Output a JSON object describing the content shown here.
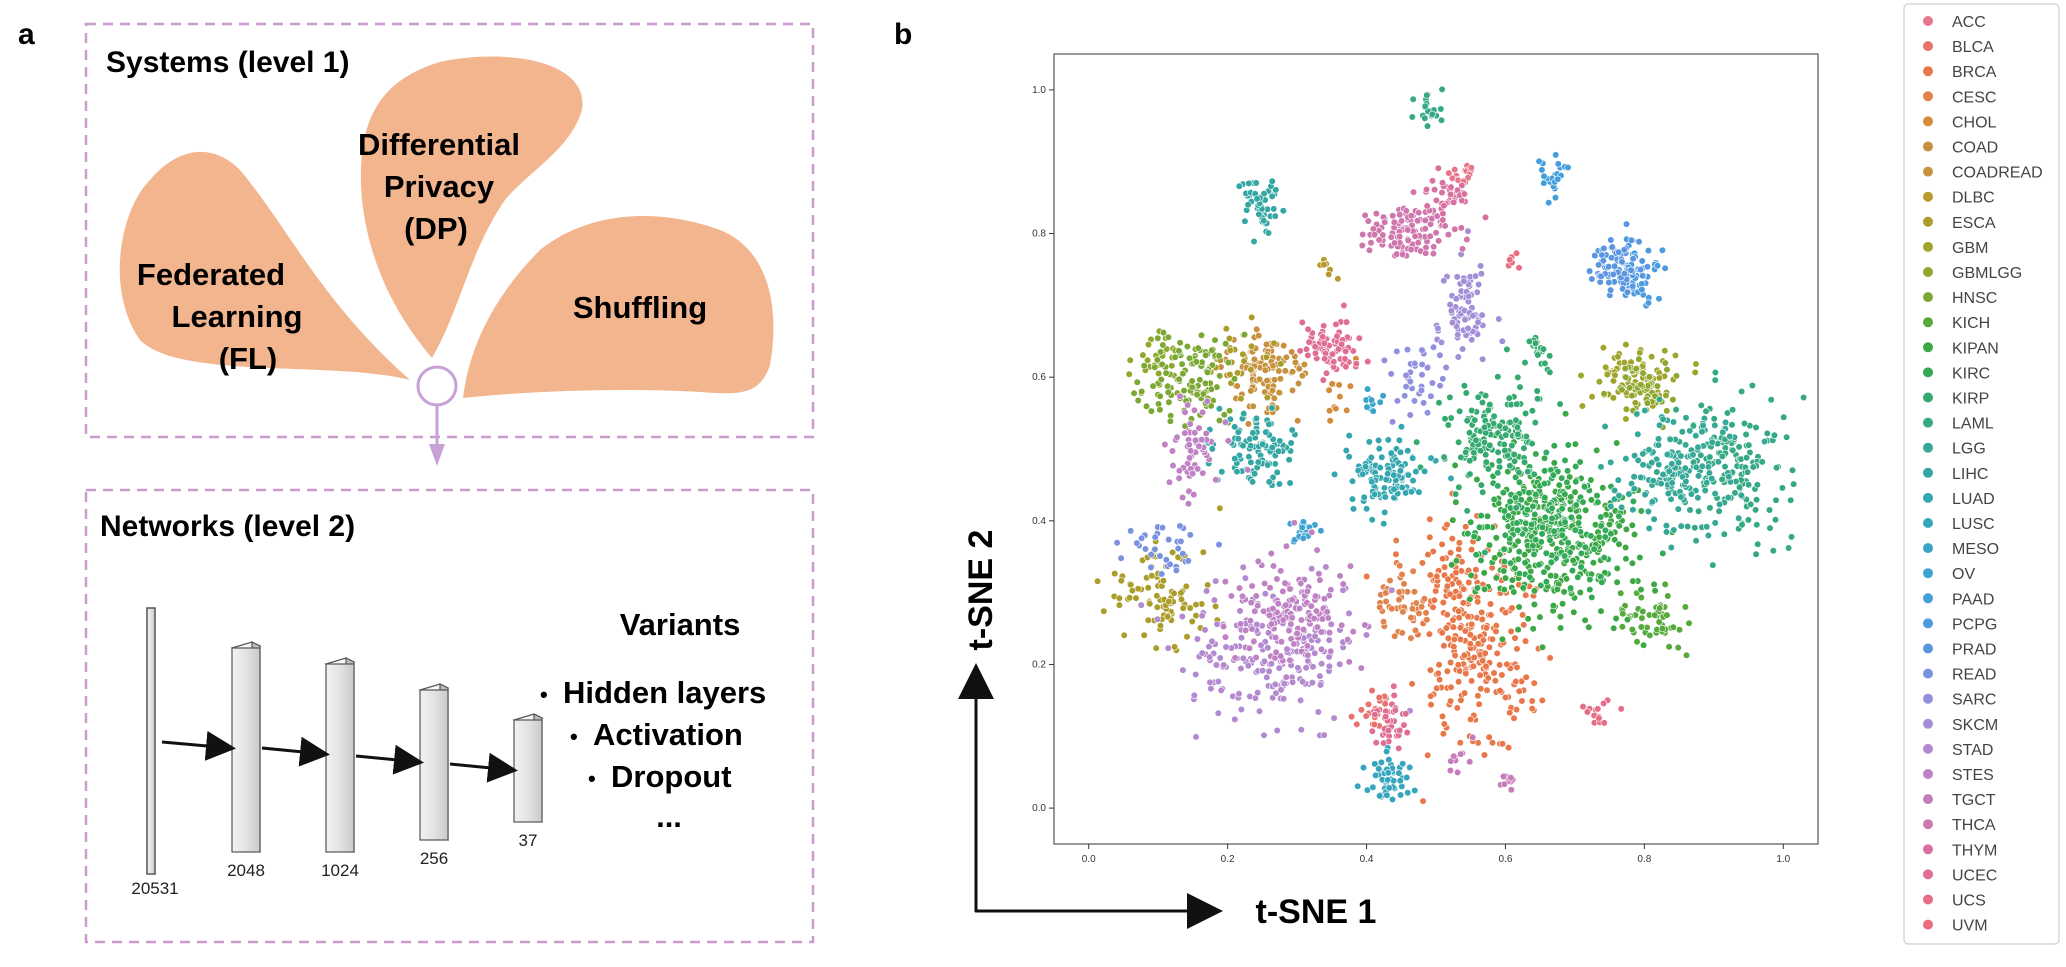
{
  "panel_a": {
    "letter": "a",
    "systems_box": {
      "title": "Systems (level 1)",
      "petals": [
        {
          "id": "fl",
          "lines": [
            "Federated",
            "Learning",
            "(FL)"
          ]
        },
        {
          "id": "dp",
          "lines": [
            "Differential",
            "Privacy",
            "(DP)"
          ]
        },
        {
          "id": "shuffling",
          "lines": [
            "Shuffling"
          ]
        }
      ]
    },
    "networks_box": {
      "title": "Networks (level 2)",
      "layers": [
        "20531",
        "2048",
        "1024",
        "256",
        "37"
      ],
      "variants_title": "Variants",
      "variants": [
        "Hidden layers",
        "Activation",
        "Dropout",
        "..."
      ],
      "bullet": "•"
    },
    "colors": {
      "petal": "#f2b58e",
      "dashed_border": "#c89ccd",
      "arrow": "#c8a2d6"
    }
  },
  "panel_b": {
    "letter": "b",
    "chart_data": {
      "type": "scatter",
      "xlabel": "t-SNE 1",
      "ylabel": "t-SNE 2",
      "xlim": [
        -0.05,
        1.05
      ],
      "ylim": [
        -0.05,
        1.05
      ],
      "xticks": [
        "0.0",
        "0.2",
        "0.4",
        "0.6",
        "0.8",
        "1.0"
      ],
      "yticks": [
        "0.0",
        "0.2",
        "0.4",
        "0.6",
        "0.8",
        "1.0"
      ],
      "grid": false,
      "legend_position": "right",
      "series": [
        {
          "name": "ACC",
          "color": "#e8768a",
          "clusters": [
            [
              0.54,
              0.88,
              0.01,
              0.01,
              15
            ]
          ]
        },
        {
          "name": "BLCA",
          "color": "#e8736c",
          "clusters": [
            [
              0.41,
              0.13,
              0.015,
              0.02,
              25
            ]
          ]
        },
        {
          "name": "BRCA",
          "color": "#e8784a",
          "clusters": [
            [
              0.56,
              0.22,
              0.04,
              0.07,
              260
            ],
            [
              0.51,
              0.33,
              0.015,
              0.03,
              35
            ]
          ]
        },
        {
          "name": "CESC",
          "color": "#e0834c",
          "clusters": [
            [
              0.45,
              0.29,
              0.02,
              0.025,
              50
            ]
          ]
        },
        {
          "name": "CHOL",
          "color": "#d48b3a",
          "clusters": [
            [
              0.36,
              0.57,
              0.01,
              0.02,
              12
            ]
          ]
        },
        {
          "name": "COAD",
          "color": "#c98e3e",
          "clusters": [
            [
              0.25,
              0.61,
              0.03,
              0.03,
              65
            ]
          ]
        },
        {
          "name": "COADREAD",
          "color": "#c4933c",
          "clusters": [
            [
              0.26,
              0.6,
              0.025,
              0.025,
              40
            ]
          ]
        },
        {
          "name": "DLBC",
          "color": "#b89a2c",
          "clusters": [
            [
              0.34,
              0.75,
              0.007,
              0.007,
              8
            ]
          ]
        },
        {
          "name": "ESCA",
          "color": "#ab9d2a",
          "clusters": [
            [
              0.1,
              0.3,
              0.04,
              0.04,
              90
            ],
            [
              0.22,
              0.62,
              0.02,
              0.02,
              25
            ]
          ]
        },
        {
          "name": "GBM",
          "color": "#9fa52c",
          "clusters": [
            [
              0.78,
              0.6,
              0.03,
              0.02,
              80
            ]
          ]
        },
        {
          "name": "GBMLGG",
          "color": "#8ea82e",
          "clusters": [
            [
              0.8,
              0.58,
              0.02,
              0.02,
              50
            ],
            [
              0.1,
              0.62,
              0.02,
              0.02,
              25
            ]
          ]
        },
        {
          "name": "HNSC",
          "color": "#7aa833",
          "clusters": [
            [
              0.15,
              0.6,
              0.03,
              0.035,
              120
            ]
          ]
        },
        {
          "name": "KICH",
          "color": "#54aa3a",
          "clusters": [
            [
              0.81,
              0.27,
              0.025,
              0.02,
              55
            ]
          ]
        },
        {
          "name": "KIPAN",
          "color": "#3ba845",
          "clusters": [
            [
              0.67,
              0.38,
              0.06,
              0.06,
              330
            ]
          ]
        },
        {
          "name": "KIRC",
          "color": "#33aa56",
          "clusters": [
            [
              0.66,
              0.4,
              0.05,
              0.05,
              190
            ]
          ]
        },
        {
          "name": "KIRP",
          "color": "#35aa70",
          "clusters": [
            [
              0.58,
              0.52,
              0.035,
              0.04,
              160
            ],
            [
              0.65,
              0.63,
              0.01,
              0.015,
              22
            ]
          ]
        },
        {
          "name": "LAML",
          "color": "#35a986",
          "clusters": [
            [
              0.49,
              0.97,
              0.012,
              0.015,
              22
            ],
            [
              0.93,
              0.48,
              0.04,
              0.05,
              160
            ]
          ]
        },
        {
          "name": "LGG",
          "color": "#35a898",
          "clusters": [
            [
              0.84,
              0.47,
              0.04,
              0.04,
              160
            ]
          ]
        },
        {
          "name": "LIHC",
          "color": "#34a7a4",
          "clusters": [
            [
              0.24,
              0.5,
              0.03,
              0.025,
              100
            ],
            [
              0.25,
              0.84,
              0.015,
              0.02,
              50
            ]
          ]
        },
        {
          "name": "LUAD",
          "color": "#34a6b0",
          "clusters": [
            [
              0.43,
              0.46,
              0.03,
              0.025,
              110
            ]
          ]
        },
        {
          "name": "LUSC",
          "color": "#37a5bd",
          "clusters": [
            [
              0.43,
              0.04,
              0.018,
              0.015,
              55
            ]
          ]
        },
        {
          "name": "MESO",
          "color": "#3aa4c8",
          "clusters": [
            [
              0.41,
              0.57,
              0.008,
              0.008,
              10
            ]
          ]
        },
        {
          "name": "OV",
          "color": "#3ea2d2",
          "clusters": [
            [
              0.31,
              0.39,
              0.012,
              0.012,
              20
            ]
          ]
        },
        {
          "name": "PAAD",
          "color": "#439fdc",
          "clusters": [
            [
              0.67,
              0.88,
              0.012,
              0.012,
              22
            ]
          ]
        },
        {
          "name": "PCPG",
          "color": "#4c9bdf",
          "clusters": [
            [
              0.79,
              0.74,
              0.02,
              0.02,
              60
            ]
          ]
        },
        {
          "name": "PRAD",
          "color": "#5a96e0",
          "clusters": [
            [
              0.76,
              0.76,
              0.02,
              0.02,
              70
            ]
          ]
        },
        {
          "name": "READ",
          "color": "#7a92df",
          "clusters": [
            [
              0.1,
              0.36,
              0.03,
              0.02,
              35
            ]
          ]
        },
        {
          "name": "SARC",
          "color": "#9090df",
          "clusters": [
            [
              0.47,
              0.6,
              0.02,
              0.025,
              40
            ]
          ]
        },
        {
          "name": "SKCM",
          "color": "#a38ed8",
          "clusters": [
            [
              0.54,
              0.69,
              0.02,
              0.03,
              80
            ]
          ]
        },
        {
          "name": "STAD",
          "color": "#b389cf",
          "clusters": [
            [
              0.26,
              0.22,
              0.06,
              0.045,
              200
            ]
          ]
        },
        {
          "name": "STES",
          "color": "#bf82c4",
          "clusters": [
            [
              0.29,
              0.27,
              0.04,
              0.04,
              150
            ],
            [
              0.15,
              0.49,
              0.02,
              0.03,
              60
            ]
          ]
        },
        {
          "name": "TGCT",
          "color": "#c67cba",
          "clusters": [
            [
              0.6,
              0.04,
              0.007,
              0.007,
              10
            ],
            [
              0.53,
              0.07,
              0.01,
              0.01,
              10
            ]
          ]
        },
        {
          "name": "THCA",
          "color": "#cf76ad",
          "clusters": [
            [
              0.46,
              0.8,
              0.03,
              0.02,
              110
            ]
          ]
        },
        {
          "name": "THYM",
          "color": "#d8719f",
          "clusters": [
            [
              0.52,
              0.85,
              0.015,
              0.015,
              40
            ]
          ]
        },
        {
          "name": "UCEC",
          "color": "#e06e93",
          "clusters": [
            [
              0.35,
              0.64,
              0.02,
              0.02,
              70
            ],
            [
              0.44,
              0.12,
              0.015,
              0.02,
              35
            ]
          ]
        },
        {
          "name": "UCS",
          "color": "#e66d88",
          "clusters": [
            [
              0.74,
              0.13,
              0.012,
              0.008,
              14
            ]
          ]
        },
        {
          "name": "UVM",
          "color": "#ea6e80",
          "clusters": [
            [
              0.61,
              0.76,
              0.007,
              0.007,
              8
            ]
          ]
        }
      ]
    }
  }
}
